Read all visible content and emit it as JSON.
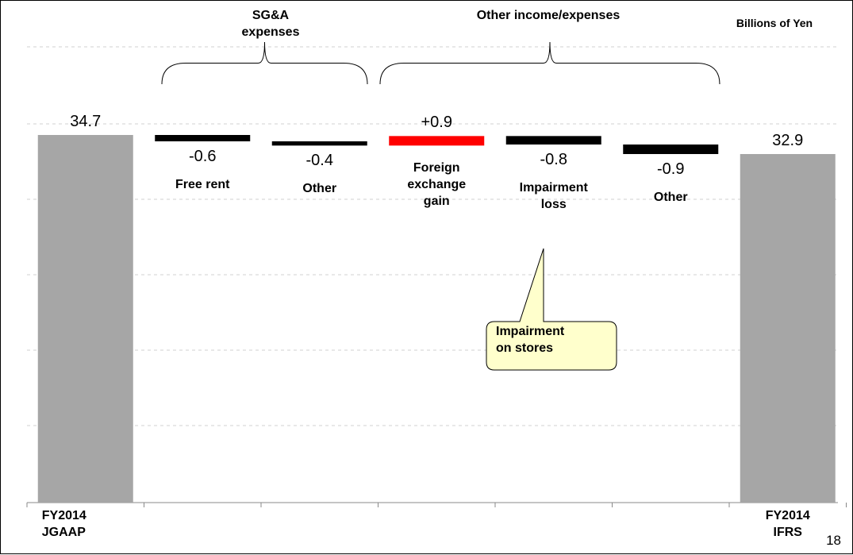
{
  "header": {
    "unit": "Billions of Yen",
    "page_number": "18"
  },
  "brackets": [
    {
      "label_line1": "SG&A",
      "label_line2": "expenses"
    },
    {
      "label_line1": "Other income/expenses",
      "label_line2": ""
    }
  ],
  "callout": {
    "line1": "Impairment",
    "line2": "on stores"
  },
  "colors": {
    "total": "#a6a6a6",
    "decrease": "#000000",
    "increase": "#ff0000",
    "callout_fill": "#ffffcc",
    "grid": "#d0d0d0"
  },
  "chart_data": {
    "type": "bar",
    "subtype": "waterfall",
    "grid": true,
    "steps": [
      {
        "name_lines": [
          "FY2014",
          "JGAAP"
        ],
        "value": 34.7,
        "kind": "total",
        "value_label": "34.7"
      },
      {
        "name_lines": [
          "Free rent"
        ],
        "value": -0.6,
        "kind": "decrease",
        "value_label": "-0.6"
      },
      {
        "name_lines": [
          "Other"
        ],
        "value": -0.4,
        "kind": "decrease",
        "value_label": "-0.4"
      },
      {
        "name_lines": [
          "Foreign",
          "exchange",
          "gain"
        ],
        "value": 0.9,
        "kind": "increase",
        "value_label": "+0.9"
      },
      {
        "name_lines": [
          "Impairment",
          "loss"
        ],
        "value": -0.8,
        "kind": "decrease",
        "value_label": "-0.8"
      },
      {
        "name_lines": [
          "Other"
        ],
        "value": -0.9,
        "kind": "decrease",
        "value_label": "-0.9"
      },
      {
        "name_lines": [
          "FY2014",
          "IFRS"
        ],
        "value": 32.9,
        "kind": "total",
        "value_label": "32.9"
      }
    ]
  }
}
